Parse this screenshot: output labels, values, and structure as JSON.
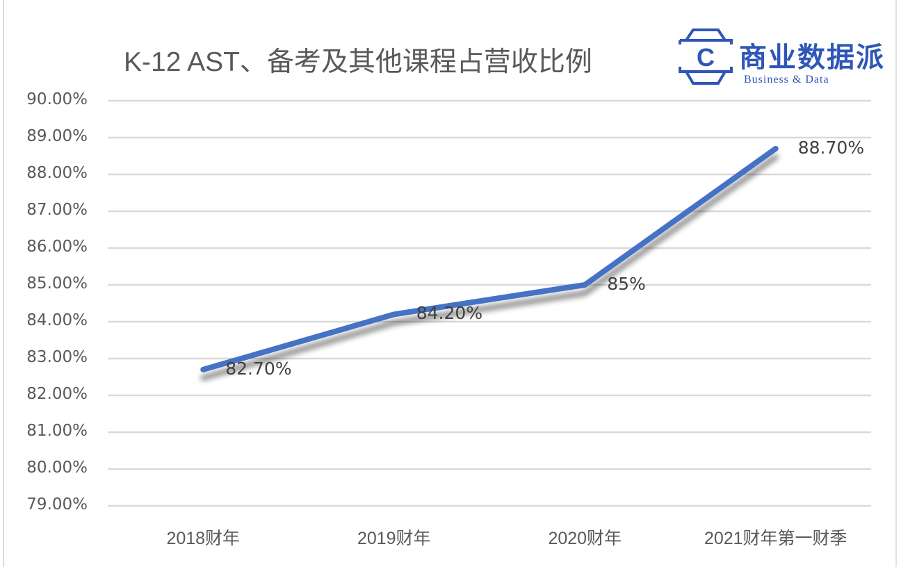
{
  "title": "K-12 AST、备考及其他课程占营收比例",
  "logo": {
    "mark_letter": "C",
    "name_cn": "商业数据派",
    "name_en": "Business & Data",
    "color": "#2f56b8"
  },
  "y_axis": {
    "ticks": [
      "90.00%",
      "89.00%",
      "88.00%",
      "87.00%",
      "86.00%",
      "85.00%",
      "84.00%",
      "83.00%",
      "82.00%",
      "81.00%",
      "80.00%",
      "79.00%"
    ]
  },
  "x_axis": {
    "ticks": [
      "2018财年",
      "2019财年",
      "2020财年",
      "2021财年第一财季"
    ]
  },
  "data_labels": [
    "82.70%",
    "84.20%",
    "85%",
    "88.70%"
  ],
  "colors": {
    "line": "#4472c4",
    "grid": "#d9d9d9",
    "text": "#595959"
  },
  "chart_data": {
    "type": "line",
    "title": "K-12 AST、备考及其他课程占营收比例",
    "categories": [
      "2018财年",
      "2019财年",
      "2020财年",
      "2021财年第一财季"
    ],
    "series": [
      {
        "name": "K-12 AST、备考及其他课程占营收比例",
        "values": [
          82.7,
          84.2,
          85.0,
          88.7
        ]
      }
    ],
    "data_labels": [
      "82.70%",
      "84.20%",
      "85%",
      "88.70%"
    ],
    "xlabel": "",
    "ylabel": "",
    "ylim": [
      79,
      90
    ],
    "ytick_step": 1,
    "ytick_format": "0.00%",
    "grid": true,
    "legend": "none"
  }
}
